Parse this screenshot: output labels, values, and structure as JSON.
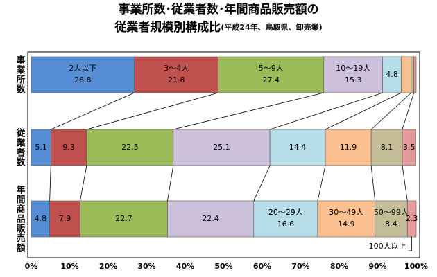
{
  "chart_data": {
    "type": "stacked-bar-100",
    "title": "事業所数･従業者数･年間商品販売額の",
    "title_line2": "従業者規模別構成比",
    "subtitle": "(平成24年、鳥取県、卸売業)",
    "categories": [
      "事業所数",
      "従業者数",
      "年間商品販売額"
    ],
    "series": [
      {
        "name": "2人以下",
        "color": "#558ed5",
        "values": [
          26.8,
          5.1,
          4.8
        ],
        "value_labels": [
          "26.8",
          "5.1",
          "4.8"
        ]
      },
      {
        "name": "3～4人",
        "color": "#c0504d",
        "values": [
          21.8,
          9.3,
          7.9
        ],
        "value_labels": [
          "21.8",
          "9.3",
          "7.9"
        ]
      },
      {
        "name": "5～9人",
        "color": "#9bbb59",
        "values": [
          27.4,
          22.5,
          22.7
        ],
        "value_labels": [
          "27.4",
          "22.5",
          "22.7"
        ]
      },
      {
        "name": "10～19人",
        "color": "#ccc0da",
        "values": [
          15.3,
          25.1,
          22.4
        ],
        "value_labels": [
          "15.3",
          "25.1",
          "22.4"
        ]
      },
      {
        "name": "20～29人",
        "color": "#b7dee8",
        "values": [
          4.8,
          14.4,
          16.6
        ],
        "value_labels": [
          "4.8",
          "14.4",
          "16.6"
        ]
      },
      {
        "name": "30～49人",
        "color": "#fac08f",
        "values": [
          2.6,
          11.9,
          14.9
        ],
        "value_labels": [
          null,
          "11.9",
          "14.9"
        ]
      },
      {
        "name": "50～99人",
        "color": "#c4bd97",
        "values": [
          0.7,
          8.1,
          8.4
        ],
        "value_labels": [
          null,
          "8.1",
          "8.4"
        ]
      },
      {
        "name": "100人以上",
        "color": "#e49a9a",
        "values": [
          0.6,
          3.5,
          2.3
        ],
        "value_labels": [
          null,
          "3.5",
          "2.3"
        ]
      }
    ],
    "xlim": [
      0,
      100
    ],
    "xticks": [
      {
        "value": 0,
        "label": "0%"
      },
      {
        "value": 10,
        "label": "10%"
      },
      {
        "value": 20,
        "label": "20%"
      },
      {
        "value": 30,
        "label": "30%"
      },
      {
        "value": 40,
        "label": "40%"
      },
      {
        "value": 50,
        "label": "50%"
      },
      {
        "value": 60,
        "label": "60%"
      },
      {
        "value": 70,
        "label": "70%"
      },
      {
        "value": 80,
        "label": "80%"
      },
      {
        "value": 90,
        "label": "90%"
      },
      {
        "value": 100,
        "label": "100%"
      }
    ]
  }
}
